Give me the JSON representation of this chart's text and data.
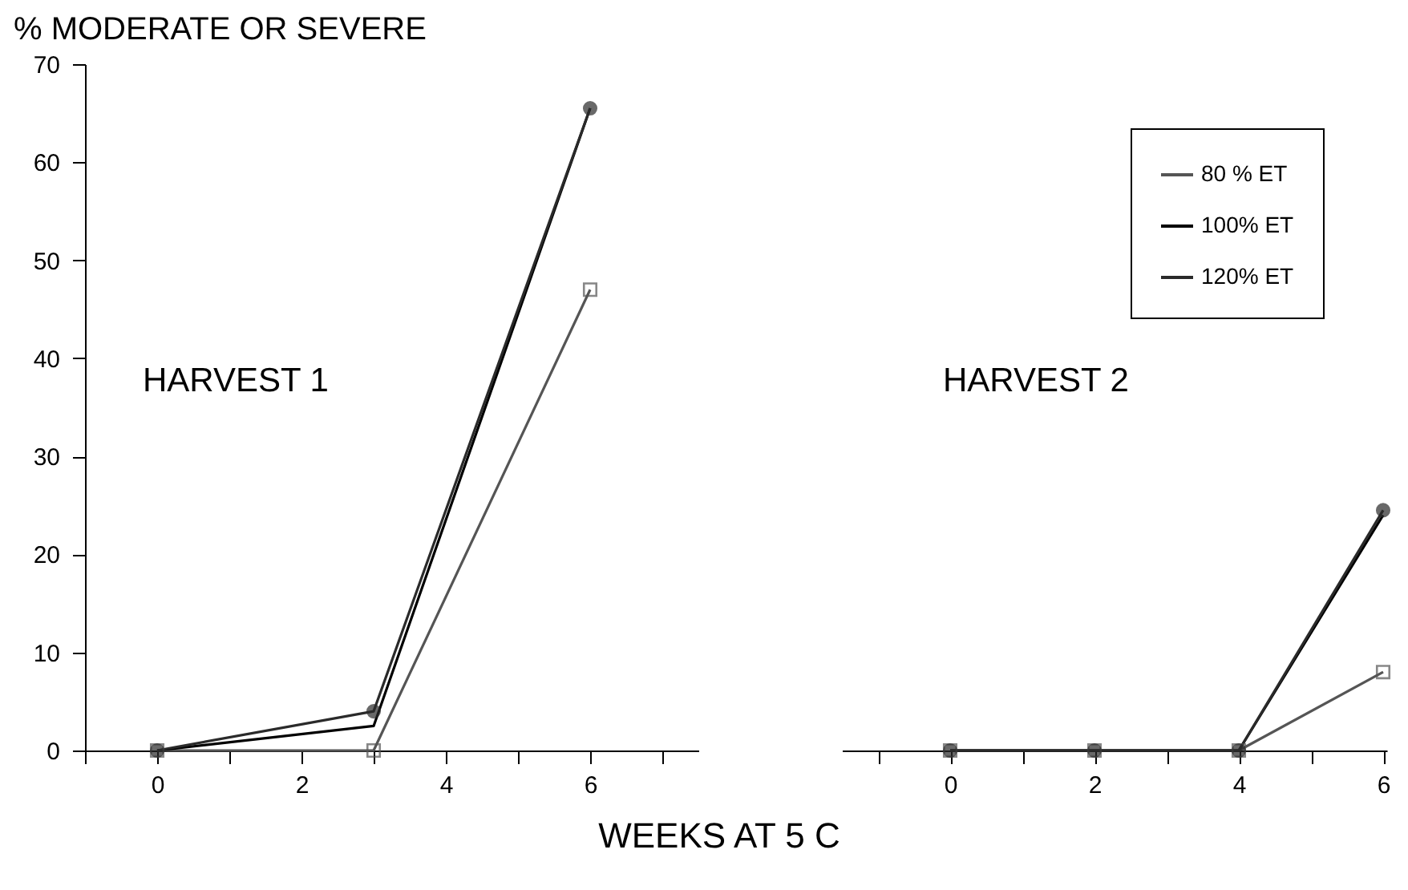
{
  "chart_data": [
    {
      "type": "line",
      "ylabel": "% MODERATE OR SEVERE",
      "xlabel": "WEEKS AT 5 C",
      "annotations": [
        "HARVEST 1"
      ],
      "xlim": [
        -1,
        7.5
      ],
      "xticks": [
        {
          "value": -1,
          "label": null
        },
        0,
        {
          "value": 1,
          "label": null
        },
        2,
        {
          "value": 3,
          "label": null
        },
        4,
        {
          "value": 5,
          "label": null
        },
        6,
        {
          "value": 7,
          "label": null
        }
      ],
      "ylim": [
        0,
        70
      ],
      "yticks": [
        0,
        10,
        20,
        30,
        40,
        50,
        60,
        70
      ],
      "series": [
        {
          "color": "#555555",
          "marker": "square",
          "x": [
            0,
            3,
            6
          ],
          "values": [
            0,
            0,
            47
          ]
        },
        {
          "color": "#000000",
          "marker": "none",
          "x": [
            0,
            3,
            6
          ],
          "values": [
            0,
            2.5,
            65.5
          ]
        },
        {
          "color": "#2a2a2a",
          "marker": "circle",
          "x": [
            0,
            3,
            6
          ],
          "values": [
            0,
            4,
            65.5
          ]
        }
      ],
      "grid": false
    },
    {
      "type": "line",
      "annotations": [
        "HARVEST 2"
      ],
      "xlim": [
        -1.5,
        6.05
      ],
      "xticks": [
        {
          "value": -1,
          "label": null
        },
        0,
        {
          "value": 1,
          "label": null
        },
        2,
        {
          "value": 3,
          "label": null
        },
        4,
        {
          "value": 5,
          "label": null
        },
        6
      ],
      "ylim": [
        0,
        70
      ],
      "tick_labels": "x",
      "series": [
        {
          "name": "80 % ET",
          "color": "#555555",
          "marker": "square",
          "x": [
            0,
            2,
            4,
            6
          ],
          "values": [
            0,
            0,
            0,
            8
          ]
        },
        {
          "name": "100% ET",
          "color": "#000000",
          "marker": "none",
          "x": [
            0,
            2,
            4,
            6
          ],
          "values": [
            0,
            0,
            0,
            24
          ]
        },
        {
          "name": "120% ET",
          "color": "#2a2a2a",
          "marker": "circle",
          "x": [
            0,
            2,
            4,
            6
          ],
          "values": [
            0,
            0,
            0,
            24.5
          ]
        }
      ],
      "grid": false,
      "legend": "top right"
    }
  ]
}
